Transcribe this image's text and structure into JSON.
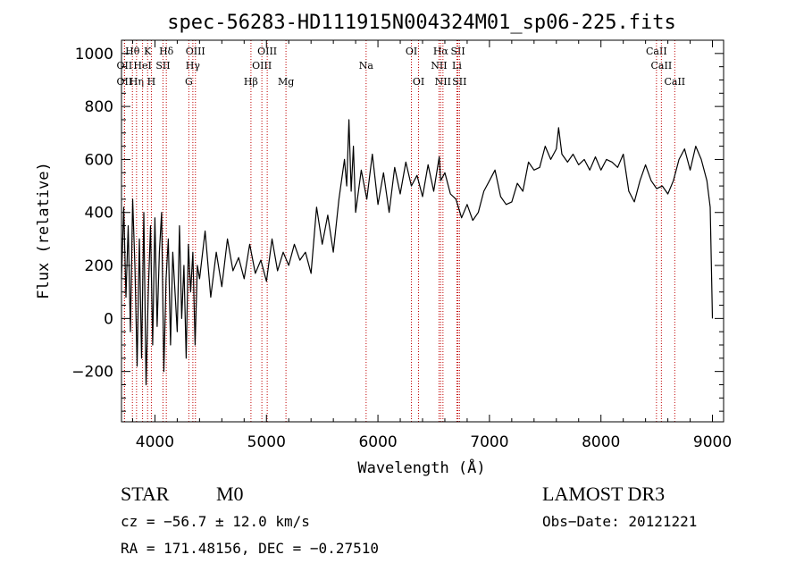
{
  "chart_data": {
    "type": "line",
    "title": "spec-56283-HD111915N004324M01_sp06-225.fits",
    "xlabel": "Wavelength (Å)",
    "ylabel": "Flux (relative)",
    "xlim": [
      3700,
      9100
    ],
    "ylim": [
      -390,
      1050
    ],
    "xticks": [
      4000,
      5000,
      6000,
      7000,
      8000,
      9000
    ],
    "yticks": [
      -200,
      0,
      200,
      400,
      600,
      800,
      1000
    ],
    "grid": false,
    "series": [
      {
        "x": [
          3700,
          3720,
          3740,
          3760,
          3780,
          3800,
          3820,
          3840,
          3860,
          3880,
          3900,
          3920,
          3940,
          3960,
          3980,
          4000,
          4020,
          4040,
          4060,
          4080,
          4100,
          4120,
          4140,
          4160,
          4180,
          4200,
          4220,
          4240,
          4260,
          4280,
          4300,
          4320,
          4340,
          4360,
          4380,
          4400,
          4450,
          4500,
          4550,
          4600,
          4650,
          4700,
          4750,
          4800,
          4850,
          4900,
          4950,
          5000,
          5050,
          5100,
          5150,
          5200,
          5250,
          5300,
          5350,
          5400,
          5450,
          5500,
          5550,
          5600,
          5650,
          5700,
          5720,
          5740,
          5760,
          5780,
          5800,
          5850,
          5900,
          5950,
          6000,
          6050,
          6100,
          6150,
          6200,
          6250,
          6300,
          6350,
          6400,
          6450,
          6500,
          6550,
          6563,
          6600,
          6650,
          6700,
          6750,
          6800,
          6850,
          6900,
          6950,
          7000,
          7050,
          7100,
          7150,
          7200,
          7250,
          7300,
          7350,
          7400,
          7450,
          7500,
          7550,
          7600,
          7620,
          7650,
          7700,
          7750,
          7800,
          7850,
          7900,
          7950,
          8000,
          8050,
          8100,
          8150,
          8200,
          8250,
          8300,
          8350,
          8400,
          8450,
          8500,
          8550,
          8600,
          8650,
          8700,
          8750,
          8800,
          8850,
          8900,
          8950,
          8980,
          9000
        ],
        "y": [
          150,
          420,
          80,
          350,
          -50,
          450,
          200,
          -180,
          300,
          -150,
          400,
          -250,
          100,
          350,
          -100,
          380,
          -30,
          250,
          400,
          -200,
          150,
          300,
          -100,
          250,
          100,
          -50,
          350,
          0,
          200,
          -150,
          280,
          100,
          250,
          -100,
          200,
          150,
          330,
          80,
          250,
          120,
          300,
          180,
          230,
          150,
          280,
          170,
          220,
          140,
          300,
          180,
          250,
          200,
          280,
          220,
          250,
          170,
          420,
          280,
          390,
          250,
          450,
          600,
          500,
          750,
          480,
          650,
          400,
          560,
          450,
          620,
          430,
          550,
          400,
          570,
          470,
          590,
          500,
          540,
          460,
          580,
          480,
          610,
          520,
          550,
          470,
          450,
          380,
          430,
          370,
          400,
          480,
          520,
          560,
          460,
          430,
          440,
          510,
          480,
          590,
          560,
          570,
          650,
          600,
          640,
          720,
          620,
          590,
          620,
          580,
          600,
          560,
          610,
          560,
          600,
          590,
          570,
          620,
          480,
          440,
          520,
          580,
          520,
          490,
          500,
          470,
          520,
          600,
          640,
          560,
          650,
          600,
          520,
          420,
          0
        ]
      }
    ],
    "lines": [
      {
        "label": "OII",
        "wavelength": 3727,
        "row": 2
      },
      {
        "label": "OII",
        "wavelength": 3727,
        "row": 3
      },
      {
        "label": "Hθ",
        "wavelength": 3798,
        "row": 1
      },
      {
        "label": "Hη",
        "wavelength": 3835,
        "row": 3
      },
      {
        "label": "K",
        "wavelength": 3934,
        "row": 1
      },
      {
        "label": "H",
        "wavelength": 3968,
        "row": 3
      },
      {
        "label": "HeI",
        "wavelength": 3889,
        "row": 2
      },
      {
        "label": "SII",
        "wavelength": 4072,
        "row": 2
      },
      {
        "label": "Hδ",
        "wavelength": 4102,
        "row": 1
      },
      {
        "label": "OIII",
        "wavelength": 4363,
        "row": 1
      },
      {
        "label": "Hγ",
        "wavelength": 4340,
        "row": 2
      },
      {
        "label": "G",
        "wavelength": 4304,
        "row": 3
      },
      {
        "label": "Hβ",
        "wavelength": 4861,
        "row": 3
      },
      {
        "label": "OIII",
        "wavelength": 4959,
        "row": 2
      },
      {
        "label": "OIII",
        "wavelength": 5007,
        "row": 1
      },
      {
        "label": "Mg",
        "wavelength": 5175,
        "row": 3
      },
      {
        "label": "Na",
        "wavelength": 5894,
        "row": 2
      },
      {
        "label": "OI",
        "wavelength": 6300,
        "row": 1
      },
      {
        "label": "OI",
        "wavelength": 6364,
        "row": 3
      },
      {
        "label": "Hα",
        "wavelength": 6563,
        "row": 1
      },
      {
        "label": "NII",
        "wavelength": 6548,
        "row": 2
      },
      {
        "label": "NII",
        "wavelength": 6583,
        "row": 3
      },
      {
        "label": "SII",
        "wavelength": 6717,
        "row": 1
      },
      {
        "label": "Li",
        "wavelength": 6708,
        "row": 2
      },
      {
        "label": "SII",
        "wavelength": 6731,
        "row": 3
      },
      {
        "label": "CaII",
        "wavelength": 8498,
        "row": 1
      },
      {
        "label": "CaII",
        "wavelength": 8542,
        "row": 2
      },
      {
        "label": "CaII",
        "wavelength": 8662,
        "row": 3
      }
    ]
  },
  "info": {
    "class": "STAR",
    "subclass": "M0",
    "survey": "LAMOST DR3",
    "cz": "cz = −56.7 ± 12.0 km/s",
    "obs_date": "Obs−Date: 20121221",
    "radec": "RA = 171.48156, DEC =  −0.27510"
  }
}
